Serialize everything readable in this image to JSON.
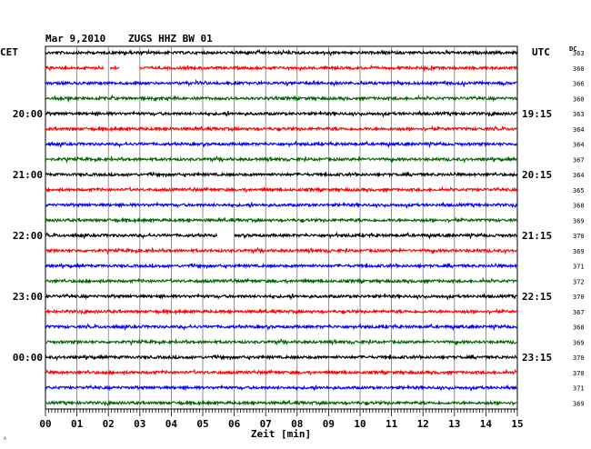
{
  "header": {
    "date": "Mar 9,2010",
    "station": "ZUGS HHZ BW 01",
    "left_tz": "CET",
    "right_tz": "UTC",
    "dc_label": "DC"
  },
  "chart_data": {
    "type": "line",
    "title": "Mar 9,2010   ZUGS HHZ BW 01",
    "xlabel": "Zeit [min]",
    "xlim": [
      0,
      15
    ],
    "x_ticks": [
      "00",
      "01",
      "02",
      "03",
      "04",
      "05",
      "06",
      "07",
      "08",
      "09",
      "10",
      "11",
      "12",
      "13",
      "14",
      "15"
    ],
    "rows_per_hour": 4,
    "trace_colors": [
      "#000000",
      "#ff0000",
      "#0000ff",
      "#006400"
    ],
    "left_hour_labels": [
      "20:00",
      "21:00",
      "22:00",
      "23:00",
      "00:00"
    ],
    "right_hour_labels": [
      "19:15",
      "20:15",
      "21:15",
      "22:15",
      "23:15"
    ],
    "dc_offsets": [
      363,
      360,
      366,
      360,
      363,
      364,
      364,
      367,
      364,
      365,
      368,
      369,
      370,
      369,
      371,
      372,
      370,
      367,
      368,
      369,
      370,
      370,
      371,
      369
    ],
    "gaps": [
      {
        "row": 1,
        "from_min": 1.85,
        "to_min": 2.05
      },
      {
        "row": 1,
        "from_min": 2.35,
        "to_min": 3.0
      },
      {
        "row": 12,
        "from_min": 5.45,
        "to_min": 6.0
      }
    ]
  },
  "footer": {
    "corner_mark": "ᴬ"
  }
}
